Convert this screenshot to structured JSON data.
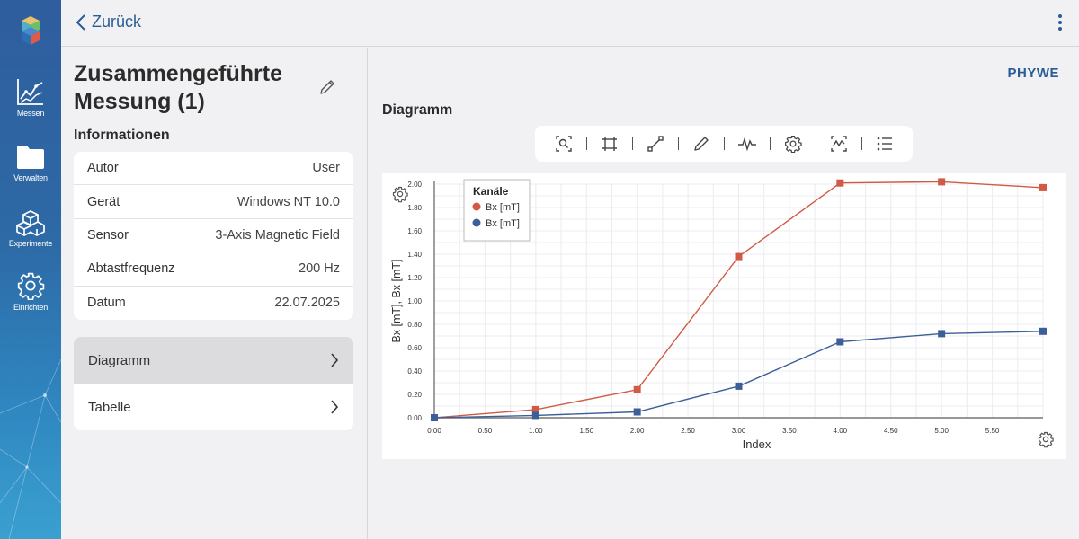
{
  "sidebar": {
    "items": [
      {
        "label": "Messen",
        "icon": "chart-line-icon"
      },
      {
        "label": "Verwalten",
        "icon": "folder-icon"
      },
      {
        "label": "Experimente",
        "icon": "cubes-icon"
      },
      {
        "label": "Einrichten",
        "icon": "gear-icon"
      }
    ]
  },
  "header": {
    "back_label": "Zurück"
  },
  "page": {
    "title": "Zusammengeführte Messung (1)",
    "info_heading": "Informationen",
    "info": [
      {
        "key": "Autor",
        "value": "User"
      },
      {
        "key": "Gerät",
        "value": "Windows NT 10.0"
      },
      {
        "key": "Sensor",
        "value": "3-Axis Magnetic Field"
      },
      {
        "key": "Abtastfrequenz",
        "value": "200 Hz"
      },
      {
        "key": "Datum",
        "value": "22.07.2025"
      }
    ],
    "menu": [
      {
        "label": "Diagramm",
        "active": true
      },
      {
        "label": "Tabelle",
        "active": false
      }
    ]
  },
  "right": {
    "brand": "PHYWE",
    "heading": "Diagramm",
    "toolbar": [
      "zoom-icon",
      "fit-icon",
      "line-tool-icon",
      "pencil-icon",
      "signal-icon",
      "settings-icon",
      "analysis-icon",
      "list-icon"
    ]
  },
  "colors": {
    "accent": "#2a5d96",
    "series1": "#d05a45",
    "series2": "#3d5f98"
  },
  "chart_data": {
    "type": "line",
    "xlabel": "Index",
    "ylabel": "Bx [mT], Bx [mT]",
    "xlim": [
      0,
      6
    ],
    "ylim": [
      0,
      2
    ],
    "xticks": [
      "0.00",
      "0.50",
      "1.00",
      "1.50",
      "2.00",
      "2.50",
      "3.00",
      "3.50",
      "4.00",
      "4.50",
      "5.00",
      "5.50"
    ],
    "yticks": [
      "0.00",
      "0.20",
      "0.40",
      "0.60",
      "0.80",
      "1.00",
      "1.20",
      "1.40",
      "1.60",
      "1.80",
      "2.00"
    ],
    "legend_title": "Kanäle",
    "legend_position": "top-left",
    "grid": true,
    "x": [
      0,
      1,
      2,
      3,
      4,
      5,
      6
    ],
    "series": [
      {
        "name": "Bx [mT]",
        "color": "#d05a45",
        "values": [
          0.0,
          0.07,
          0.24,
          1.38,
          2.01,
          2.02,
          1.97
        ]
      },
      {
        "name": "Bx [mT]",
        "color": "#3d5f98",
        "values": [
          0.0,
          0.02,
          0.05,
          0.27,
          0.65,
          0.72,
          0.74
        ]
      }
    ]
  }
}
